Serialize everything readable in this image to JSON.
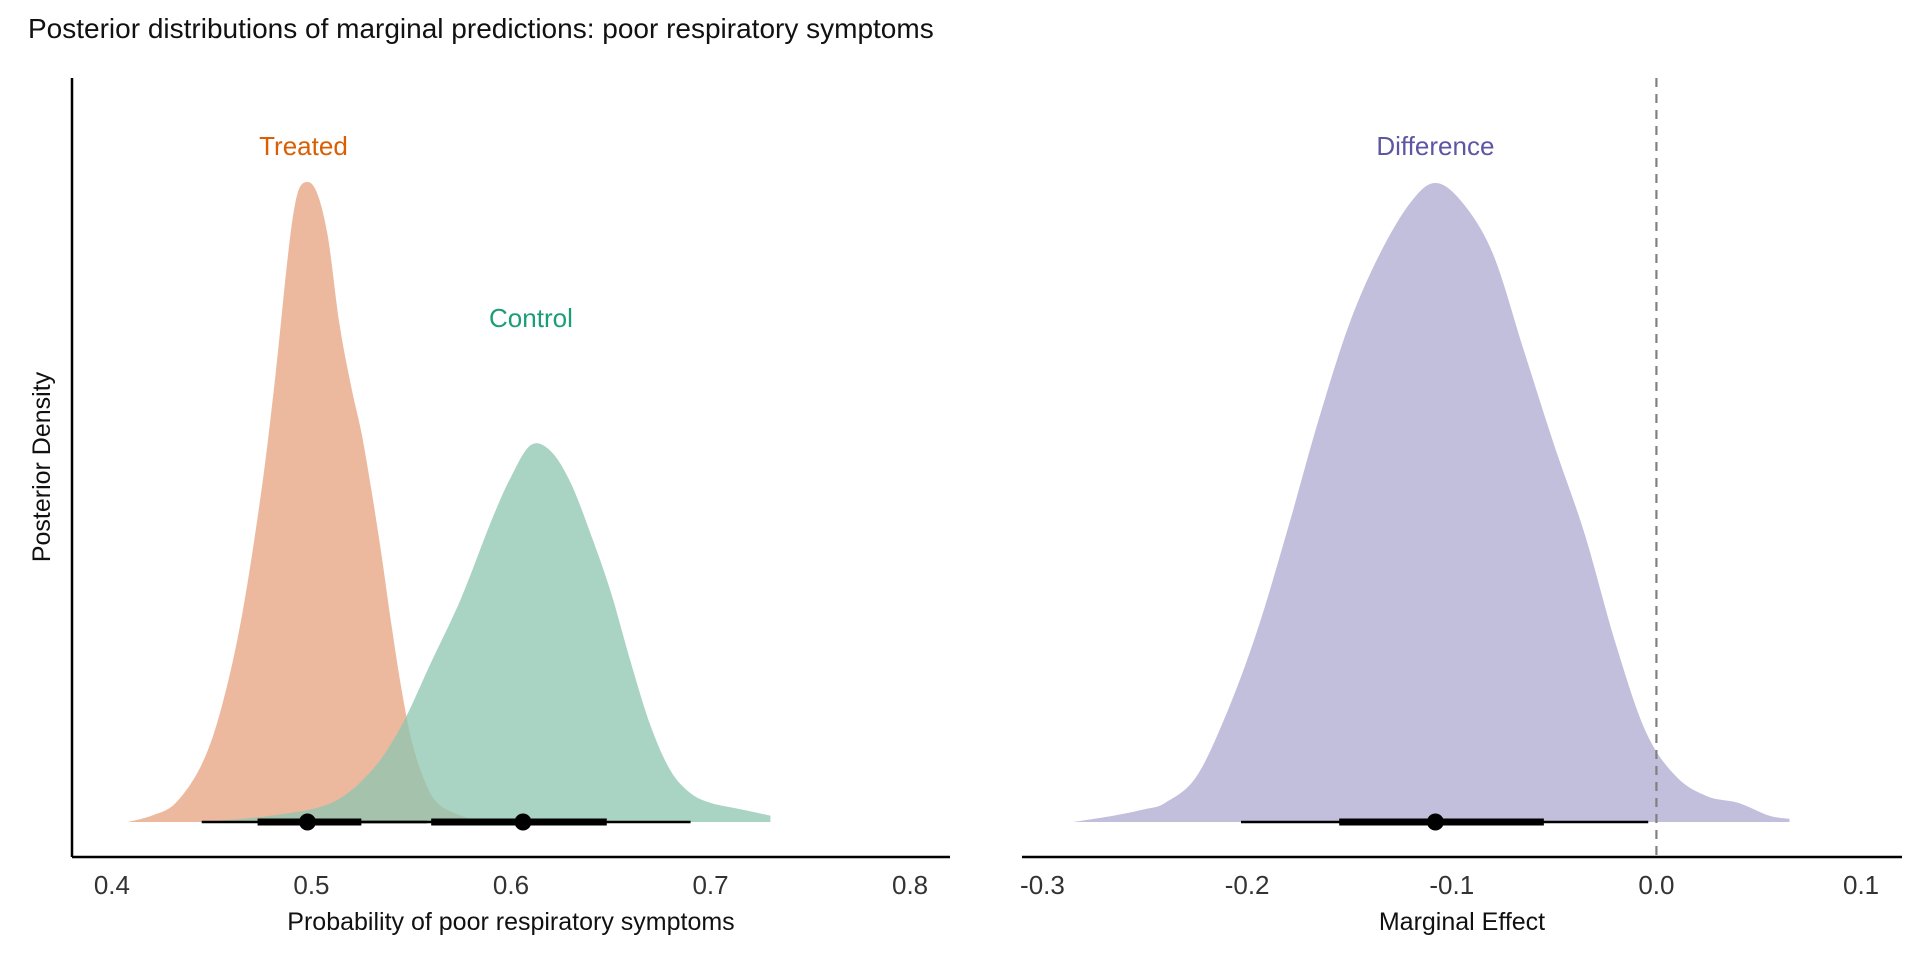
{
  "title": "Posterior distributions of marginal predictions: poor respiratory symptoms",
  "chart_data": [
    {
      "type": "area",
      "panel": "left",
      "title": "Posterior distributions of marginal predictions: poor respiratory symptoms",
      "xlabel": "Probability of poor respiratory symptoms",
      "ylabel": "Posterior Density",
      "xlim": [
        0.38,
        0.82
      ],
      "xticks": [
        "0.4",
        "0.5",
        "0.6",
        "0.7",
        "0.8"
      ],
      "y_tick_labels": false,
      "grid": false,
      "series": [
        {
          "name": "Treated",
          "color": "#D95F02",
          "fill": "#E6A482",
          "density": [
            [
              0.408,
              0.0
            ],
            [
              0.42,
              0.01
            ],
            [
              0.432,
              0.03
            ],
            [
              0.445,
              0.09
            ],
            [
              0.455,
              0.18
            ],
            [
              0.465,
              0.32
            ],
            [
              0.475,
              0.52
            ],
            [
              0.482,
              0.7
            ],
            [
              0.488,
              0.88
            ],
            [
              0.492,
              0.97
            ],
            [
              0.496,
              1.0
            ],
            [
              0.502,
              0.99
            ],
            [
              0.508,
              0.92
            ],
            [
              0.514,
              0.78
            ],
            [
              0.52,
              0.68
            ],
            [
              0.525,
              0.61
            ],
            [
              0.53,
              0.52
            ],
            [
              0.535,
              0.42
            ],
            [
              0.54,
              0.31
            ],
            [
              0.545,
              0.21
            ],
            [
              0.55,
              0.13
            ],
            [
              0.556,
              0.07
            ],
            [
              0.563,
              0.03
            ],
            [
              0.575,
              0.01
            ],
            [
              0.585,
              0.0
            ]
          ],
          "interval": {
            "point": 0.498,
            "inner": [
              0.473,
              0.525
            ],
            "outer": [
              0.445,
              0.558
            ]
          }
        },
        {
          "name": "Control",
          "color": "#1B9E77",
          "fill": "#8FC7B1",
          "density": [
            [
              0.445,
              0.0
            ],
            [
              0.48,
              0.01
            ],
            [
              0.51,
              0.03
            ],
            [
              0.53,
              0.08
            ],
            [
              0.545,
              0.15
            ],
            [
              0.56,
              0.25
            ],
            [
              0.575,
              0.35
            ],
            [
              0.59,
              0.47
            ],
            [
              0.6,
              0.54
            ],
            [
              0.61,
              0.59
            ],
            [
              0.62,
              0.58
            ],
            [
              0.63,
              0.53
            ],
            [
              0.64,
              0.45
            ],
            [
              0.65,
              0.36
            ],
            [
              0.66,
              0.25
            ],
            [
              0.67,
              0.15
            ],
            [
              0.68,
              0.08
            ],
            [
              0.69,
              0.045
            ],
            [
              0.7,
              0.03
            ],
            [
              0.715,
              0.02
            ],
            [
              0.73,
              0.01
            ]
          ],
          "interval": {
            "point": 0.606,
            "inner": [
              0.56,
              0.648
            ],
            "outer": [
              0.525,
              0.69
            ]
          }
        }
      ]
    },
    {
      "type": "area",
      "panel": "right",
      "xlabel": "Marginal Effect",
      "ylabel": "",
      "xlim": [
        -0.31,
        0.12
      ],
      "xticks": [
        "-0.3",
        "-0.2",
        "-0.1",
        "0.0",
        "0.1"
      ],
      "reference_line": 0.0,
      "grid": false,
      "series": [
        {
          "name": "Difference",
          "color": "#5E56A3",
          "fill": "#B0ACD3",
          "density": [
            [
              -0.285,
              0.0
            ],
            [
              -0.265,
              0.01
            ],
            [
              -0.25,
              0.02
            ],
            [
              -0.24,
              0.03
            ],
            [
              -0.225,
              0.07
            ],
            [
              -0.21,
              0.17
            ],
            [
              -0.195,
              0.3
            ],
            [
              -0.18,
              0.46
            ],
            [
              -0.165,
              0.63
            ],
            [
              -0.15,
              0.78
            ],
            [
              -0.135,
              0.89
            ],
            [
              -0.12,
              0.97
            ],
            [
              -0.108,
              1.0
            ],
            [
              -0.095,
              0.97
            ],
            [
              -0.08,
              0.89
            ],
            [
              -0.065,
              0.74
            ],
            [
              -0.05,
              0.59
            ],
            [
              -0.035,
              0.45
            ],
            [
              -0.02,
              0.28
            ],
            [
              -0.005,
              0.14
            ],
            [
              0.01,
              0.07
            ],
            [
              0.025,
              0.04
            ],
            [
              0.04,
              0.03
            ],
            [
              0.055,
              0.01
            ],
            [
              0.065,
              0.005
            ]
          ],
          "interval": {
            "point": -0.108,
            "inner": [
              -0.155,
              -0.055
            ],
            "outer": [
              -0.203,
              -0.004
            ]
          }
        }
      ]
    }
  ]
}
